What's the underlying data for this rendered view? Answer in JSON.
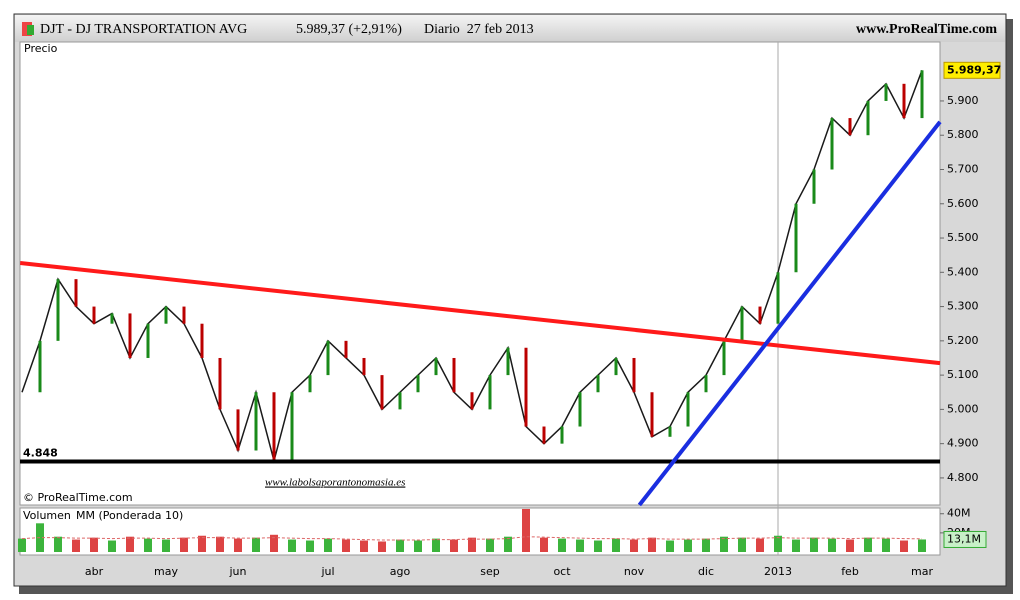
{
  "header": {
    "symbol": "DJT - DJ TRANSPORTATION AVG",
    "quote": "5.989,37 (+2,91%)",
    "period": "Diario  27 feb 2013",
    "site": "www.ProRealTime.com"
  },
  "chart_data": [
    {
      "type": "line",
      "y_label": "Precio",
      "color": "#1a1a1a",
      "categories": [
        null,
        null,
        null,
        null,
        "abr",
        null,
        null,
        null,
        "may",
        null,
        null,
        null,
        "jun",
        null,
        null,
        null,
        null,
        "jul",
        null,
        null,
        null,
        "ago",
        null,
        null,
        null,
        null,
        "sep",
        null,
        null,
        null,
        "oct",
        null,
        null,
        null,
        "nov",
        null,
        null,
        null,
        "dic",
        null,
        null,
        null,
        "2013",
        null,
        null,
        null,
        "feb",
        null,
        null,
        null,
        "mar"
      ],
      "values": [
        5050,
        5200,
        5380,
        5300,
        5250,
        5280,
        5150,
        5250,
        5300,
        5250,
        5150,
        5000,
        4880,
        5050,
        4850,
        5050,
        5100,
        5200,
        5150,
        5100,
        5000,
        5050,
        5100,
        5150,
        5050,
        5000,
        5100,
        5180,
        4950,
        4900,
        4950,
        5050,
        5100,
        5150,
        5050,
        4920,
        4950,
        5050,
        5100,
        5200,
        5300,
        5250,
        5400,
        5600,
        5700,
        5850,
        5800,
        5900,
        5950,
        5850,
        5989.37
      ],
      "ylim": [
        4721,
        6072
      ],
      "yticks": [
        {
          "value": 4800,
          "label": "4.800"
        },
        {
          "value": 4900,
          "label": "4.900"
        },
        {
          "value": 5000,
          "label": "5.000"
        },
        {
          "value": 5100,
          "label": "5.100"
        },
        {
          "value": 5200,
          "label": "5.200"
        },
        {
          "value": 5300,
          "label": "5.300"
        },
        {
          "value": 5400,
          "label": "5.400"
        },
        {
          "value": 5500,
          "label": "5.500"
        },
        {
          "value": 5600,
          "label": "5.600"
        },
        {
          "value": 5700,
          "label": "5.700"
        },
        {
          "value": 5800,
          "label": "5.800"
        },
        {
          "value": 5900,
          "label": "5.900"
        }
      ],
      "last_value": {
        "value": 5989.37,
        "label": "5.989,37"
      },
      "support": {
        "value": 4848,
        "label": "4.848",
        "color": "#000000"
      },
      "trendlines": [
        {
          "color": "#ff1a1a",
          "x": [
            -0.1,
            51
          ],
          "values": [
            5427,
            5135
          ]
        },
        {
          "color": "#1a2ee0",
          "x": [
            34.3,
            51
          ],
          "values": [
            4721,
            5839
          ]
        }
      ],
      "watermark": "www.labolsaporantonomasia.es",
      "copyright": "© ProRealTime.com"
    },
    {
      "type": "bar",
      "title": "Volumen",
      "subtitle": "MM (Ponderada 10)",
      "values": [
        14000000,
        30000000,
        16000000,
        13000000,
        15000000,
        12000000,
        16000000,
        14000000,
        13000000,
        15000000,
        17000000,
        16000000,
        14000000,
        15000000,
        18000000,
        13000000,
        12000000,
        14000000,
        13000000,
        12000000,
        11000000,
        13000000,
        12000000,
        14000000,
        13000000,
        15000000,
        14000000,
        16000000,
        45000000,
        15000000,
        14000000,
        13000000,
        12000000,
        14000000,
        13000000,
        15000000,
        12000000,
        13000000,
        14000000,
        16000000,
        15000000,
        14000000,
        17000000,
        13000000,
        15000000,
        14000000,
        13000000,
        15000000,
        14000000,
        12000000,
        13100000
      ],
      "ma": [
        14000000,
        15000000,
        15000000,
        14500000,
        14500000,
        14000000,
        14500000,
        14500000,
        14000000,
        14500000,
        15000000,
        15000000,
        14500000,
        14500000,
        15000000,
        14500000,
        14000000,
        14000000,
        13500000,
        13000000,
        12500000,
        12500000,
        12500000,
        13000000,
        13000000,
        13500000,
        13500000,
        14000000,
        16000000,
        15500000,
        15000000,
        14500000,
        14000000,
        14000000,
        13500000,
        14000000,
        13500000,
        13500000,
        13500000,
        14000000,
        14500000,
        14500000,
        15000000,
        14500000,
        14500000,
        14500000,
        14000000,
        14500000,
        14500000,
        14000000,
        13800000
      ],
      "ylim": [
        0,
        46000000
      ],
      "yticks": [
        {
          "value": 40000000,
          "label": "40M"
        },
        {
          "value": 20000000,
          "label": "20M"
        }
      ],
      "last_value": {
        "value": 13100000,
        "label": "13,1M"
      }
    }
  ]
}
